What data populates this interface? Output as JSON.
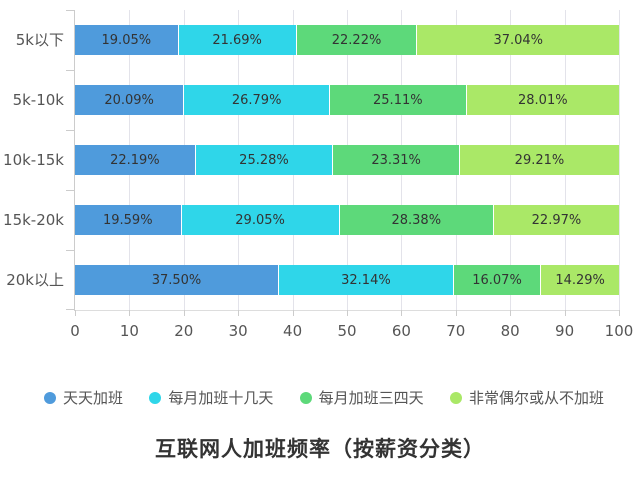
{
  "chart_data": {
    "type": "bar",
    "orientation": "horizontal",
    "stacked": true,
    "title": "互联网人加班频率（按薪资分类）",
    "categories": [
      "5k以下",
      "5k-10k",
      "10k-15k",
      "15k-20k",
      "20k以上"
    ],
    "series": [
      {
        "name": "天天加班",
        "color": "#4f9bdc",
        "values": [
          19.05,
          20.09,
          22.19,
          19.59,
          37.5
        ],
        "labels": [
          "19.05%",
          "20.09%",
          "22.19%",
          "19.59%",
          "37.50%"
        ]
      },
      {
        "name": "每月加班十几天",
        "color": "#2fd6e9",
        "values": [
          21.69,
          26.79,
          25.28,
          29.05,
          32.14
        ],
        "labels": [
          "21.69%",
          "26.79%",
          "25.28%",
          "29.05%",
          "32.14%"
        ]
      },
      {
        "name": "每月加班三四天",
        "color": "#5dd97a",
        "values": [
          22.22,
          25.11,
          23.31,
          28.38,
          16.07
        ],
        "labels": [
          "22.22%",
          "25.11%",
          "23.31%",
          "28.38%",
          "16.07%"
        ]
      },
      {
        "name": "非常偶尔或从不加班",
        "color": "#aae867",
        "values": [
          37.04,
          28.01,
          29.21,
          22.97,
          14.29
        ],
        "labels": [
          "37.04%",
          "28.01%",
          "29.21%",
          "22.97%",
          "14.29%"
        ]
      }
    ],
    "x_ticks": [
      "0",
      "10",
      "20",
      "30",
      "40",
      "50",
      "60",
      "70",
      "80",
      "90",
      "100"
    ],
    "xlim": [
      0,
      100
    ],
    "grid": true,
    "legend_position": "bottom",
    "value_label_format": "percent"
  },
  "colors": {
    "background": "#ffffff",
    "axis_line": "#cccccc",
    "grid_line": "#e3e3ea",
    "axis_text": "#555555",
    "bar_label_text": "#333333",
    "title_text": "#333333"
  }
}
